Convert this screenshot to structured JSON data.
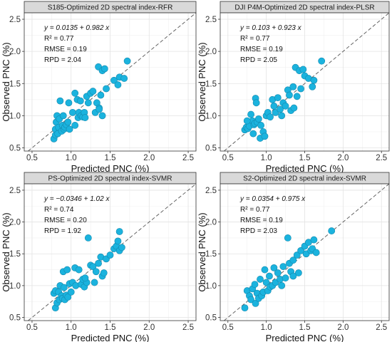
{
  "chart_data": [
    {
      "type": "scatter",
      "title": "S185-Optimized 2D spectral index-RFR",
      "xlabel": "Predicted PNC (%)",
      "ylabel": "Observed PNC (%)",
      "xlim": [
        0.4,
        2.6
      ],
      "ylim": [
        0.45,
        2.6
      ],
      "xticks": [
        "0.5",
        "1.0",
        "1.5",
        "2.0",
        "2.5"
      ],
      "yticks": [
        "0.5",
        "1.0",
        "1.5",
        "2.0",
        "2.5"
      ],
      "equation": "y = 0.0135 + 0.982 x",
      "stats": [
        "R² = 0.77",
        "RMSE = 0.19",
        "RPD = 2.04"
      ],
      "grid": true,
      "reference_line": "1:1 dashed",
      "point_color": "#1bb3de",
      "points": [
        [
          0.78,
          0.64
        ],
        [
          0.8,
          0.7
        ],
        [
          0.8,
          0.79
        ],
        [
          0.81,
          0.9
        ],
        [
          0.82,
          1.0
        ],
        [
          0.83,
          0.72
        ],
        [
          0.84,
          0.82
        ],
        [
          0.85,
          0.95
        ],
        [
          0.86,
          1.23
        ],
        [
          0.88,
          0.76
        ],
        [
          0.89,
          0.85
        ],
        [
          0.9,
          1.0
        ],
        [
          0.91,
          0.79
        ],
        [
          0.92,
          0.82
        ],
        [
          0.94,
          0.86
        ],
        [
          0.96,
          0.9
        ],
        [
          0.97,
          1.2
        ],
        [
          0.98,
          0.79
        ],
        [
          1.02,
          1.05
        ],
        [
          1.05,
          1.35
        ],
        [
          1.08,
          1.25
        ],
        [
          1.09,
          0.97
        ],
        [
          1.1,
          1.05
        ],
        [
          1.12,
          1.23
        ],
        [
          1.13,
          1.0
        ],
        [
          1.15,
          0.98
        ],
        [
          1.17,
          1.05
        ],
        [
          1.18,
          0.97
        ],
        [
          1.2,
          1.3
        ],
        [
          1.22,
          1.2
        ],
        [
          1.25,
          1.35
        ],
        [
          1.28,
          1.38
        ],
        [
          1.31,
          1.05
        ],
        [
          1.33,
          1.2
        ],
        [
          1.35,
          1.76
        ],
        [
          1.36,
          1.12
        ],
        [
          1.38,
          1.32
        ],
        [
          1.4,
          1.7
        ],
        [
          1.4,
          1.0
        ],
        [
          1.43,
          1.73
        ],
        [
          1.45,
          1.42
        ],
        [
          1.55,
          1.55
        ],
        [
          1.6,
          1.48
        ],
        [
          1.62,
          1.6
        ],
        [
          1.68,
          1.58
        ],
        [
          1.72,
          1.85
        ],
        [
          1.36,
          1.1
        ],
        [
          1.05,
          0.85
        ]
      ]
    },
    {
      "type": "scatter",
      "title": "DJI P4M-Optimized 2D spectral index-PLSR",
      "xlabel": "Predicted PNC (%)",
      "ylabel": "Observed PNC (%)",
      "xlim": [
        0.4,
        2.6
      ],
      "ylim": [
        0.45,
        2.6
      ],
      "xticks": [
        "0.5",
        "1.0",
        "1.5",
        "2.0",
        "2.5"
      ],
      "yticks": [
        "0.5",
        "1.0",
        "1.5",
        "2.0",
        "2.5"
      ],
      "equation": "y = 0.103 + 0.923 x",
      "stats": [
        "R² = 0.77",
        "RMSE = 0.19",
        "RPD = 2.05"
      ],
      "grid": true,
      "reference_line": "1:1 dashed",
      "point_color": "#1bb3de",
      "points": [
        [
          0.72,
          0.78
        ],
        [
          0.74,
          0.82
        ],
        [
          0.76,
          0.8
        ],
        [
          0.78,
          0.84
        ],
        [
          0.8,
          1.02
        ],
        [
          0.82,
          0.92
        ],
        [
          0.83,
          0.72
        ],
        [
          0.84,
          0.86
        ],
        [
          0.85,
          0.88
        ],
        [
          0.86,
          1.27
        ],
        [
          0.87,
          1.2
        ],
        [
          0.88,
          0.9
        ],
        [
          0.9,
          0.95
        ],
        [
          0.92,
          0.65
        ],
        [
          0.93,
          0.85
        ],
        [
          0.96,
          0.75
        ],
        [
          0.98,
          0.68
        ],
        [
          1.0,
          1.0
        ],
        [
          1.02,
          1.05
        ],
        [
          1.05,
          0.98
        ],
        [
          1.08,
          1.25
        ],
        [
          1.1,
          1.15
        ],
        [
          1.12,
          1.05
        ],
        [
          1.15,
          1.28
        ],
        [
          1.18,
          1.1
        ],
        [
          1.2,
          1.0
        ],
        [
          1.22,
          1.2
        ],
        [
          1.25,
          1.15
        ],
        [
          1.28,
          1.4
        ],
        [
          1.3,
          1.32
        ],
        [
          1.32,
          1.08
        ],
        [
          1.35,
          1.45
        ],
        [
          1.38,
          1.75
        ],
        [
          1.4,
          1.3
        ],
        [
          1.43,
          1.7
        ],
        [
          1.45,
          1.42
        ],
        [
          1.5,
          1.62
        ],
        [
          1.55,
          1.58
        ],
        [
          1.6,
          1.45
        ],
        [
          1.62,
          1.55
        ],
        [
          1.72,
          1.85
        ],
        [
          1.48,
          1.72
        ],
        [
          1.36,
          1.12
        ],
        [
          0.75,
          0.92
        ]
      ]
    },
    {
      "type": "scatter",
      "title": "PS-Optimized 2D spectral index-SVMR",
      "xlabel": "Predicted PNC (%)",
      "ylabel": "Observed PNC (%)",
      "xlim": [
        0.4,
        2.6
      ],
      "ylim": [
        0.45,
        2.6
      ],
      "xticks": [
        "0.5",
        "1.0",
        "1.5",
        "2.0",
        "2.5"
      ],
      "yticks": [
        "0.5",
        "1.0",
        "1.5",
        "2.0",
        "2.5"
      ],
      "equation": "y = −0.0346 + 1.02 x",
      "stats": [
        "R² = 0.74",
        "RMSE = 0.20",
        "RPD = 1.92"
      ],
      "grid": true,
      "reference_line": "1:1 dashed",
      "point_color": "#1bb3de",
      "points": [
        [
          0.78,
          0.88
        ],
        [
          0.8,
          0.65
        ],
        [
          0.8,
          0.92
        ],
        [
          0.82,
          0.73
        ],
        [
          0.84,
          0.9
        ],
        [
          0.85,
          0.78
        ],
        [
          0.86,
          1.0
        ],
        [
          0.88,
          0.84
        ],
        [
          0.89,
          0.8
        ],
        [
          0.9,
          1.22
        ],
        [
          0.91,
          0.97
        ],
        [
          0.92,
          0.78
        ],
        [
          0.94,
          0.85
        ],
        [
          0.95,
          1.25
        ],
        [
          0.96,
          0.82
        ],
        [
          0.98,
          1.03
        ],
        [
          1.0,
          0.9
        ],
        [
          1.02,
          1.05
        ],
        [
          1.05,
          1.28
        ],
        [
          1.06,
          1.0
        ],
        [
          1.1,
          1.25
        ],
        [
          1.13,
          1.02
        ],
        [
          1.15,
          1.1
        ],
        [
          1.17,
          0.98
        ],
        [
          1.2,
          1.05
        ],
        [
          1.22,
          1.75
        ],
        [
          1.25,
          1.32
        ],
        [
          1.28,
          1.3
        ],
        [
          1.3,
          1.05
        ],
        [
          1.32,
          1.22
        ],
        [
          1.35,
          1.35
        ],
        [
          1.38,
          1.45
        ],
        [
          1.4,
          1.15
        ],
        [
          1.45,
          1.42
        ],
        [
          1.5,
          1.48
        ],
        [
          1.55,
          1.58
        ],
        [
          1.58,
          1.62
        ],
        [
          1.6,
          1.7
        ],
        [
          1.62,
          1.55
        ],
        [
          1.62,
          1.85
        ],
        [
          1.65,
          1.6
        ],
        [
          1.42,
          1.2
        ],
        [
          1.18,
          1.12
        ]
      ]
    },
    {
      "type": "scatter",
      "title": "S2-Optimized 2D spectral index-SVMR",
      "xlabel": "Predicted PNC (%)",
      "ylabel": "Observed PNC (%)",
      "xlim": [
        0.4,
        2.6
      ],
      "ylim": [
        0.45,
        2.6
      ],
      "xticks": [
        "0.5",
        "1.0",
        "1.5",
        "2.0",
        "2.5"
      ],
      "yticks": [
        "0.5",
        "1.0",
        "1.5",
        "2.0",
        "2.5"
      ],
      "equation": "y = 0.0354 + 0.975 x",
      "stats": [
        "R² = 0.77",
        "RMSE = 0.19",
        "RPD = 2.03"
      ],
      "grid": true,
      "reference_line": "1:1 dashed",
      "point_color": "#1bb3de",
      "points": [
        [
          0.72,
          0.65
        ],
        [
          0.75,
          0.92
        ],
        [
          0.78,
          0.84
        ],
        [
          0.8,
          0.78
        ],
        [
          0.82,
          0.95
        ],
        [
          0.85,
          1.02
        ],
        [
          0.86,
          0.72
        ],
        [
          0.88,
          0.88
        ],
        [
          0.9,
          0.8
        ],
        [
          0.92,
          1.1
        ],
        [
          0.94,
          0.84
        ],
        [
          0.96,
          0.9
        ],
        [
          0.98,
          1.25
        ],
        [
          1.0,
          1.05
        ],
        [
          1.02,
          0.92
        ],
        [
          1.04,
          1.15
        ],
        [
          1.05,
          0.98
        ],
        [
          1.08,
          1.0
        ],
        [
          1.1,
          1.28
        ],
        [
          1.12,
          1.05
        ],
        [
          1.15,
          1.2
        ],
        [
          1.18,
          1.1
        ],
        [
          1.2,
          1.0
        ],
        [
          1.22,
          1.3
        ],
        [
          1.25,
          1.12
        ],
        [
          1.28,
          1.75
        ],
        [
          1.3,
          1.35
        ],
        [
          1.32,
          1.22
        ],
        [
          1.35,
          1.4
        ],
        [
          1.4,
          1.48
        ],
        [
          1.42,
          1.2
        ],
        [
          1.45,
          1.55
        ],
        [
          1.5,
          1.62
        ],
        [
          1.52,
          1.5
        ],
        [
          1.55,
          1.68
        ],
        [
          1.58,
          1.55
        ],
        [
          1.6,
          1.58
        ],
        [
          1.62,
          1.72
        ],
        [
          1.65,
          1.52
        ],
        [
          1.85,
          1.86
        ],
        [
          1.35,
          1.15
        ]
      ]
    }
  ]
}
